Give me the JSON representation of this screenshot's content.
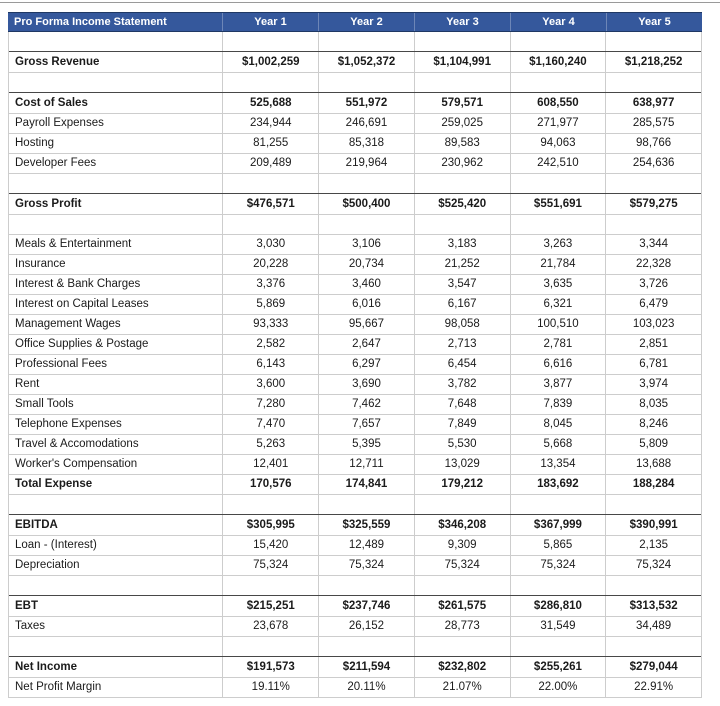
{
  "colors": {
    "header_bg": "#35589C",
    "header_border": "#1F3864",
    "grid_line": "#CDCDCD",
    "section_line": "#474747",
    "text": "#1B1B1B",
    "header_text": "#FFFFFF",
    "top_divider": "#9A9A9A"
  },
  "table": {
    "title": "Pro Forma Income Statement",
    "columns": [
      "Year 1",
      "Year 2",
      "Year 3",
      "Year 4",
      "Year 5"
    ],
    "rows": [
      {
        "label": "",
        "style": "spacer",
        "values": [
          "",
          "",
          "",
          "",
          ""
        ]
      },
      {
        "label": "Gross Revenue",
        "style": "section",
        "values": [
          "$1,002,259",
          "$1,052,372",
          "$1,104,991",
          "$1,160,240",
          "$1,218,252"
        ]
      },
      {
        "label": "",
        "style": "spacer",
        "values": [
          "",
          "",
          "",
          "",
          ""
        ]
      },
      {
        "label": "Cost of Sales",
        "style": "section",
        "values": [
          "525,688",
          "551,972",
          "579,571",
          "608,550",
          "638,977"
        ]
      },
      {
        "label": "Payroll Expenses",
        "style": "item",
        "values": [
          "234,944",
          "246,691",
          "259,025",
          "271,977",
          "285,575"
        ]
      },
      {
        "label": "Hosting",
        "style": "item",
        "values": [
          "81,255",
          "85,318",
          "89,583",
          "94,063",
          "98,766"
        ]
      },
      {
        "label": "Developer Fees",
        "style": "item",
        "values": [
          "209,489",
          "219,964",
          "230,962",
          "242,510",
          "254,636"
        ]
      },
      {
        "label": "",
        "style": "spacer",
        "values": [
          "",
          "",
          "",
          "",
          ""
        ]
      },
      {
        "label": "Gross Profit",
        "style": "section",
        "values": [
          "$476,571",
          "$500,400",
          "$525,420",
          "$551,691",
          "$579,275"
        ]
      },
      {
        "label": "",
        "style": "spacer",
        "values": [
          "",
          "",
          "",
          "",
          ""
        ]
      },
      {
        "label": "Meals & Entertainment",
        "style": "item",
        "values": [
          "3,030",
          "3,106",
          "3,183",
          "3,263",
          "3,344"
        ]
      },
      {
        "label": "Insurance",
        "style": "item",
        "values": [
          "20,228",
          "20,734",
          "21,252",
          "21,784",
          "22,328"
        ]
      },
      {
        "label": "Interest & Bank Charges",
        "style": "item",
        "values": [
          "3,376",
          "3,460",
          "3,547",
          "3,635",
          "3,726"
        ]
      },
      {
        "label": "Interest on Capital Leases",
        "style": "item",
        "values": [
          "5,869",
          "6,016",
          "6,167",
          "6,321",
          "6,479"
        ]
      },
      {
        "label": "Management Wages",
        "style": "item",
        "values": [
          "93,333",
          "95,667",
          "98,058",
          "100,510",
          "103,023"
        ]
      },
      {
        "label": "Office Supplies & Postage",
        "style": "item",
        "values": [
          "2,582",
          "2,647",
          "2,713",
          "2,781",
          "2,851"
        ]
      },
      {
        "label": "Professional Fees",
        "style": "item",
        "values": [
          "6,143",
          "6,297",
          "6,454",
          "6,616",
          "6,781"
        ]
      },
      {
        "label": "Rent",
        "style": "item",
        "values": [
          "3,600",
          "3,690",
          "3,782",
          "3,877",
          "3,974"
        ]
      },
      {
        "label": "Small Tools",
        "style": "item",
        "values": [
          "7,280",
          "7,462",
          "7,648",
          "7,839",
          "8,035"
        ]
      },
      {
        "label": "Telephone Expenses",
        "style": "item",
        "values": [
          "7,470",
          "7,657",
          "7,849",
          "8,045",
          "8,246"
        ]
      },
      {
        "label": "Travel & Accomodations",
        "style": "item",
        "values": [
          "5,263",
          "5,395",
          "5,530",
          "5,668",
          "5,809"
        ]
      },
      {
        "label": "Worker's Compensation",
        "style": "item",
        "values": [
          "12,401",
          "12,711",
          "13,029",
          "13,354",
          "13,688"
        ]
      },
      {
        "label": "Total Expense",
        "style": "total",
        "values": [
          "170,576",
          "174,841",
          "179,212",
          "183,692",
          "188,284"
        ]
      },
      {
        "label": "",
        "style": "spacer",
        "values": [
          "",
          "",
          "",
          "",
          ""
        ]
      },
      {
        "label": "EBITDA",
        "style": "section",
        "values": [
          "$305,995",
          "$325,559",
          "$346,208",
          "$367,999",
          "$390,991"
        ]
      },
      {
        "label": "Loan - (Interest)",
        "style": "item",
        "values": [
          "15,420",
          "12,489",
          "9,309",
          "5,865",
          "2,135"
        ]
      },
      {
        "label": "Depreciation",
        "style": "item",
        "values": [
          "75,324",
          "75,324",
          "75,324",
          "75,324",
          "75,324"
        ]
      },
      {
        "label": "",
        "style": "spacer",
        "values": [
          "",
          "",
          "",
          "",
          ""
        ]
      },
      {
        "label": "EBT",
        "style": "section",
        "values": [
          "$215,251",
          "$237,746",
          "$261,575",
          "$286,810",
          "$313,532"
        ]
      },
      {
        "label": "Taxes",
        "style": "item",
        "values": [
          "23,678",
          "26,152",
          "28,773",
          "31,549",
          "34,489"
        ]
      },
      {
        "label": "",
        "style": "spacer",
        "values": [
          "",
          "",
          "",
          "",
          ""
        ]
      },
      {
        "label": "Net Income",
        "style": "section",
        "values": [
          "$191,573",
          "$211,594",
          "$232,802",
          "$255,261",
          "$279,044"
        ]
      },
      {
        "label": "Net Profit Margin",
        "style": "item",
        "values": [
          "19.11%",
          "20.11%",
          "21.07%",
          "22.00%",
          "22.91%"
        ]
      }
    ]
  }
}
